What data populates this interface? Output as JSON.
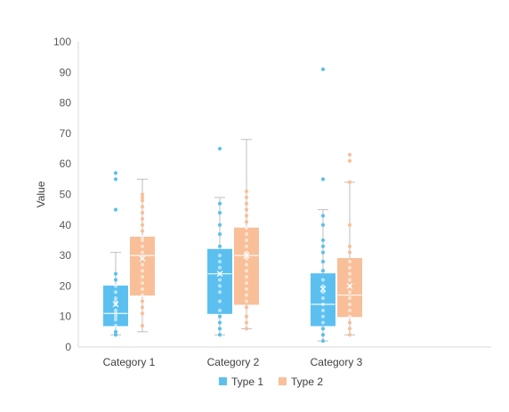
{
  "chart_data": {
    "type": "boxplot",
    "title": "",
    "xlabel": "",
    "ylabel": "Value",
    "ylim": [
      0,
      100
    ],
    "yticks": [
      0,
      10,
      20,
      30,
      40,
      50,
      60,
      70,
      80,
      90,
      100
    ],
    "categories": [
      "Category 1",
      "Category 2",
      "Category 3"
    ],
    "grid": false,
    "legend": "bottom",
    "series": [
      {
        "name": "Type 1",
        "color": "#5bc0f0",
        "boxes": [
          {
            "min": 4,
            "q1": 7,
            "median": 11,
            "mean": 14,
            "q3": 20,
            "max": 31,
            "points": [
              4,
              5,
              7,
              9,
              10,
              11,
              12,
              14,
              15,
              16,
              18,
              20,
              22,
              24,
              45,
              55,
              57
            ]
          },
          {
            "min": 4,
            "q1": 11,
            "median": 24,
            "mean": 24,
            "q3": 32,
            "max": 49,
            "points": [
              4,
              6,
              8,
              10,
              12,
              15,
              18,
              20,
              22,
              24,
              26,
              28,
              30,
              33,
              37,
              40,
              44,
              47,
              65
            ]
          },
          {
            "min": 2,
            "q1": 7,
            "median": 14,
            "mean": 19,
            "q3": 24,
            "max": 45,
            "points": [
              2,
              4,
              6,
              8,
              10,
              12,
              14,
              16,
              18,
              20,
              22,
              25,
              28,
              31,
              33,
              35,
              40,
              43,
              55,
              91
            ]
          }
        ]
      },
      {
        "name": "Type 2",
        "color": "#f8bf99",
        "boxes": [
          {
            "min": 5,
            "q1": 17,
            "median": 30,
            "mean": 29,
            "q3": 36,
            "max": 55,
            "points": [
              7,
              11,
              13,
              15,
              17,
              19,
              21,
              23,
              25,
              27,
              29,
              31,
              33,
              35,
              36,
              38,
              40,
              42,
              44,
              46,
              48,
              49,
              50
            ]
          },
          {
            "min": 6,
            "q1": 14,
            "median": 30,
            "mean": 30,
            "q3": 39,
            "max": 68,
            "points": [
              6,
              8,
              10,
              13,
              15,
              17,
              19,
              21,
              23,
              25,
              27,
              29,
              31,
              33,
              35,
              37,
              39,
              41,
              43,
              45,
              47,
              49,
              51
            ]
          },
          {
            "min": 4,
            "q1": 10,
            "median": 17,
            "mean": 20,
            "q3": 29,
            "max": 54,
            "points": [
              4,
              6,
              8,
              10,
              12,
              14,
              16,
              18,
              20,
              22,
              24,
              26,
              28,
              31,
              33,
              40,
              54,
              61,
              63
            ]
          }
        ]
      }
    ]
  }
}
